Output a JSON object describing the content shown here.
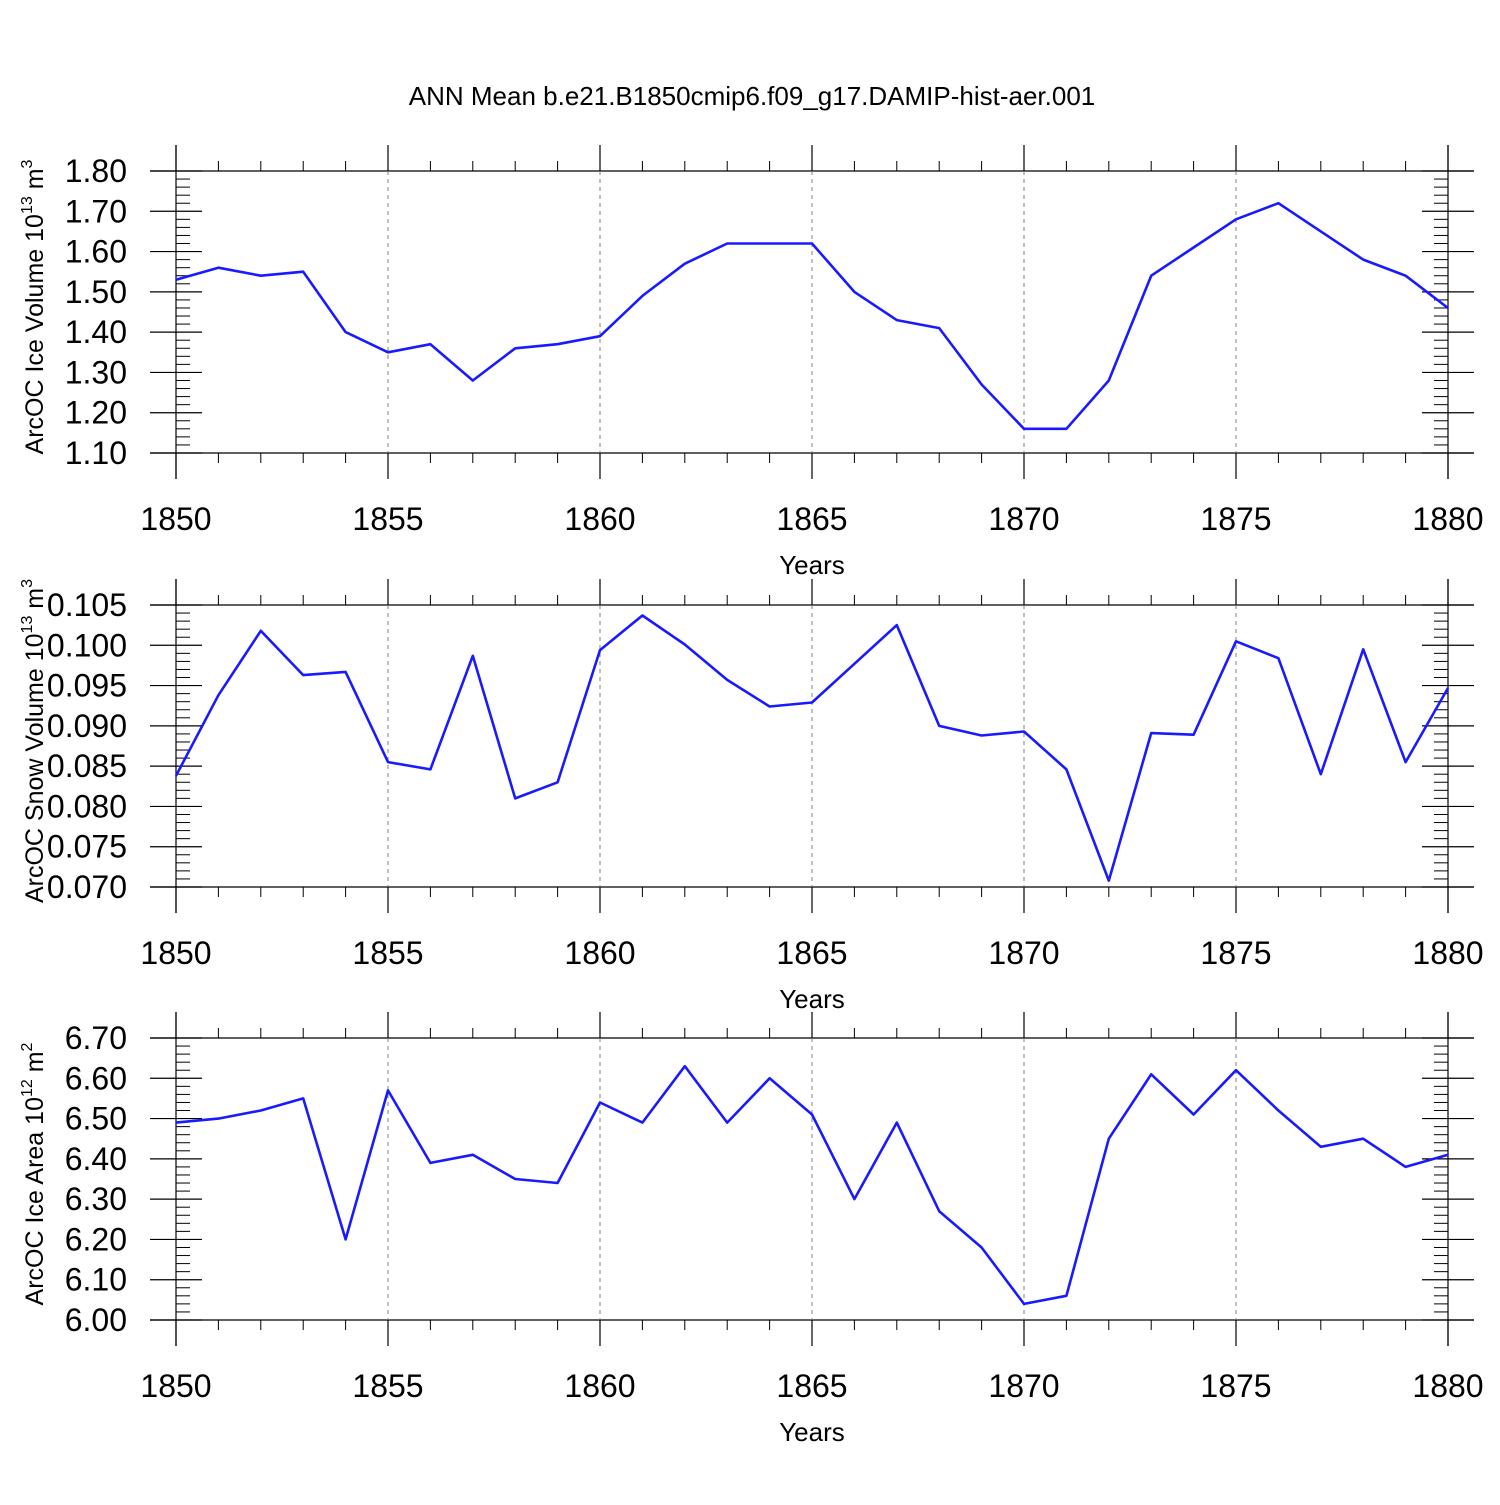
{
  "title": "ANN Mean b.e21.B1850cmip6.f09_g17.DAMIP-hist-aer.001",
  "colors": {
    "line": "#1a1aff",
    "axis": "#000000",
    "gridline": "#808080",
    "background": "#ffffff"
  },
  "chart_data": [
    {
      "type": "line",
      "ylabel": "ArcOC Ice Volume 10",
      "ylabel_exp": "13",
      "ylabel_unit": " m",
      "ylabel_unit_exp": "3",
      "xlabel": "Years",
      "xlim": [
        1850,
        1880
      ],
      "ylim": [
        1.1,
        1.8
      ],
      "x_ticks": [
        "1850",
        "1855",
        "1860",
        "1865",
        "1870",
        "1875",
        "1880"
      ],
      "y_ticks": [
        "1.10",
        "1.20",
        "1.30",
        "1.40",
        "1.50",
        "1.60",
        "1.70",
        "1.80"
      ],
      "grid": "vertical-dashed",
      "series": [
        {
          "x": [
            1850,
            1851,
            1852,
            1853,
            1854,
            1855,
            1856,
            1857,
            1858,
            1859,
            1860,
            1861,
            1862,
            1863,
            1864,
            1865,
            1866,
            1867,
            1868,
            1869,
            1870,
            1871,
            1872,
            1873,
            1874,
            1875,
            1876,
            1877,
            1878,
            1879,
            1880
          ],
          "values": [
            1.53,
            1.56,
            1.54,
            1.55,
            1.4,
            1.35,
            1.37,
            1.28,
            1.36,
            1.37,
            1.39,
            1.49,
            1.57,
            1.62,
            1.62,
            1.62,
            1.5,
            1.43,
            1.41,
            1.27,
            1.16,
            1.16,
            1.28,
            1.54,
            1.61,
            1.68,
            1.72,
            1.65,
            1.58,
            1.54,
            1.46
          ]
        }
      ]
    },
    {
      "type": "line",
      "ylabel": "ArcOC Snow Volume 10",
      "ylabel_exp": "13",
      "ylabel_unit": " m",
      "ylabel_unit_exp": "3",
      "xlabel": "Years",
      "xlim": [
        1850,
        1880
      ],
      "ylim": [
        0.07,
        0.105
      ],
      "x_ticks": [
        "1850",
        "1855",
        "1860",
        "1865",
        "1870",
        "1875",
        "1880"
      ],
      "y_ticks": [
        "0.070",
        "0.075",
        "0.080",
        "0.085",
        "0.090",
        "0.095",
        "0.100",
        "0.105"
      ],
      "grid": "vertical-dashed",
      "series": [
        {
          "x": [
            1850,
            1851,
            1852,
            1853,
            1854,
            1855,
            1856,
            1857,
            1858,
            1859,
            1860,
            1861,
            1862,
            1863,
            1864,
            1865,
            1866,
            1867,
            1868,
            1869,
            1870,
            1871,
            1872,
            1873,
            1874,
            1875,
            1876,
            1877,
            1878,
            1879,
            1880
          ],
          "values": [
            0.0838,
            0.0938,
            0.1018,
            0.0963,
            0.0967,
            0.0855,
            0.0846,
            0.0987,
            0.081,
            0.083,
            0.0994,
            0.1037,
            0.1001,
            0.0957,
            0.0924,
            0.0929,
            0.0977,
            0.1025,
            0.09,
            0.0888,
            0.0893,
            0.0846,
            0.0708,
            0.0891,
            0.0889,
            0.1005,
            0.0984,
            0.084,
            0.0995,
            0.0855,
            0.0947
          ]
        }
      ]
    },
    {
      "type": "line",
      "ylabel": "ArcOC Ice Area 10",
      "ylabel_exp": "12",
      "ylabel_unit": " m",
      "ylabel_unit_exp": "2",
      "xlabel": "Years",
      "xlim": [
        1850,
        1880
      ],
      "ylim": [
        6.0,
        6.7
      ],
      "x_ticks": [
        "1850",
        "1855",
        "1860",
        "1865",
        "1870",
        "1875",
        "1880"
      ],
      "y_ticks": [
        "6.00",
        "6.10",
        "6.20",
        "6.30",
        "6.40",
        "6.50",
        "6.60",
        "6.70"
      ],
      "grid": "vertical-dashed",
      "series": [
        {
          "x": [
            1850,
            1851,
            1852,
            1853,
            1854,
            1855,
            1856,
            1857,
            1858,
            1859,
            1860,
            1861,
            1862,
            1863,
            1864,
            1865,
            1866,
            1867,
            1868,
            1869,
            1870,
            1871,
            1872,
            1873,
            1874,
            1875,
            1876,
            1877,
            1878,
            1879,
            1880
          ],
          "values": [
            6.49,
            6.5,
            6.52,
            6.55,
            6.2,
            6.57,
            6.39,
            6.41,
            6.35,
            6.34,
            6.54,
            6.49,
            6.63,
            6.49,
            6.6,
            6.51,
            6.3,
            6.49,
            6.27,
            6.18,
            6.04,
            6.06,
            6.45,
            6.61,
            6.51,
            6.62,
            6.52,
            6.43,
            6.45,
            6.38,
            6.41
          ]
        }
      ]
    }
  ]
}
